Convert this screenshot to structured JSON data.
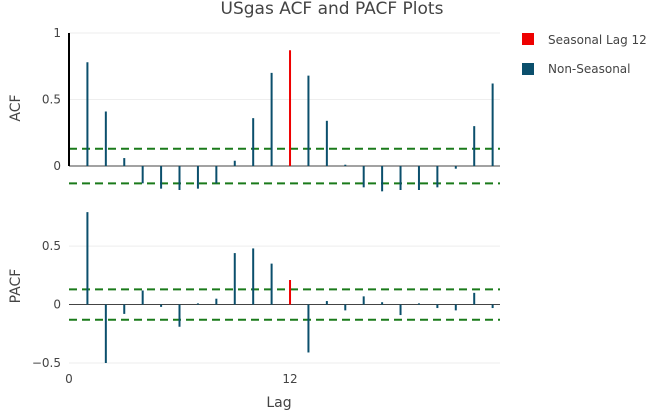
{
  "colors": {
    "seasonal": "#ee0000",
    "non_seasonal": "#0b4f6c",
    "lag0": "#000000",
    "ci": "#1a7a1a",
    "grid": "#eeeeee",
    "zero": "#444444",
    "text": "#444444"
  },
  "chart_data": {
    "type": "bar",
    "title": "USgas ACF and PACF Plots",
    "xlabel": "Lag",
    "x_ticks": [
      0,
      12
    ],
    "x_range": [
      0,
      23.4
    ],
    "seasonal_lag": 12,
    "legend": {
      "placement": "top-right",
      "items": [
        {
          "label": "Seasonal Lag 12",
          "color_key": "seasonal"
        },
        {
          "label": "Non-Seasonal",
          "color_key": "non_seasonal"
        }
      ]
    },
    "panels": [
      {
        "ylabel": "ACF",
        "ylim": [
          -0.15,
          1.0
        ],
        "y_ticks": [
          0,
          0.5,
          1
        ],
        "y_tick_labels": [
          "0",
          "0.5",
          "1"
        ],
        "ci": 0.13,
        "lags": [
          0,
          1,
          2,
          3,
          4,
          5,
          6,
          7,
          8,
          9,
          10,
          11,
          12,
          13,
          14,
          15,
          16,
          17,
          18,
          19,
          20,
          21,
          22,
          23
        ],
        "values": [
          1.0,
          0.78,
          0.41,
          0.06,
          -0.13,
          -0.17,
          -0.18,
          -0.17,
          -0.13,
          0.04,
          0.36,
          0.7,
          0.87,
          0.68,
          0.34,
          0.01,
          -0.16,
          -0.19,
          -0.18,
          -0.18,
          -0.16,
          -0.02,
          0.3,
          0.62
        ]
      },
      {
        "ylabel": "PACF",
        "ylim": [
          -0.5,
          0.8
        ],
        "y_ticks": [
          -0.5,
          0,
          0.5
        ],
        "y_tick_labels": [
          "−0.5",
          "0",
          "0.5"
        ],
        "ci": 0.13,
        "lags": [
          1,
          2,
          3,
          4,
          5,
          6,
          7,
          8,
          9,
          10,
          11,
          12,
          13,
          14,
          15,
          16,
          17,
          18,
          19,
          20,
          21,
          22,
          23
        ],
        "values": [
          0.79,
          -0.5,
          -0.08,
          0.12,
          -0.02,
          -0.19,
          0.01,
          0.05,
          0.44,
          0.48,
          0.35,
          0.21,
          -0.41,
          0.03,
          -0.05,
          0.07,
          0.02,
          -0.09,
          0.01,
          -0.03,
          -0.05,
          0.1,
          -0.03
        ]
      }
    ]
  }
}
